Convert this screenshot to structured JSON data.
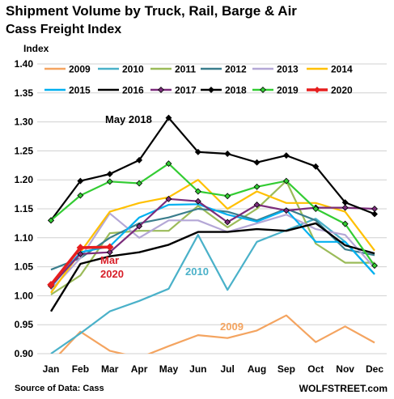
{
  "header": {
    "title": "Shipment Volume by Truck, Rail, Barge & Air",
    "subtitle": "Cass Freight Index",
    "source": "Source of Data: Cass",
    "brand": "WOLFSTREET.com"
  },
  "chart_data": {
    "type": "line",
    "ylabel": "Index",
    "xlabel": "",
    "categories": [
      "Jan",
      "Feb",
      "Mar",
      "Apr",
      "May",
      "Jun",
      "Jul",
      "Aug",
      "Sep",
      "Oct",
      "Nov",
      "Dec"
    ],
    "ylim": [
      0.9,
      1.4
    ],
    "yticks": [
      "0.90",
      "0.95",
      "1.00",
      "1.05",
      "1.10",
      "1.15",
      "1.20",
      "1.25",
      "1.30",
      "1.35",
      "1.40"
    ],
    "grid": "horizontal",
    "legend": "top",
    "series": [
      {
        "name": "2009",
        "color": "#f4a460",
        "marker": "none",
        "width": 2.2,
        "values": [
          0.884,
          0.938,
          0.905,
          0.893,
          0.913,
          0.932,
          0.927,
          0.94,
          0.966,
          0.92,
          0.947,
          0.919
        ]
      },
      {
        "name": "2010",
        "color": "#4ab1c9",
        "marker": "none",
        "width": 2.2,
        "values": [
          0.9,
          0.935,
          0.973,
          0.991,
          1.012,
          1.105,
          1.01,
          1.093,
          1.113,
          1.133,
          1.093,
          1.037
        ]
      },
      {
        "name": "2011",
        "color": "#9bbb59",
        "marker": "none",
        "width": 2.2,
        "values": [
          1.002,
          1.035,
          1.108,
          1.112,
          1.112,
          1.155,
          1.118,
          1.15,
          1.198,
          1.09,
          1.057,
          1.057
        ]
      },
      {
        "name": "2012",
        "color": "#3a7d8c",
        "marker": "none",
        "width": 2.2,
        "values": [
          1.045,
          1.065,
          1.1,
          1.125,
          1.135,
          1.15,
          1.145,
          1.13,
          1.15,
          1.13,
          1.08,
          1.07
        ]
      },
      {
        "name": "2013",
        "color": "#b4a7d6",
        "marker": "none",
        "width": 2.2,
        "values": [
          1.01,
          1.065,
          1.142,
          1.1,
          1.13,
          1.13,
          1.11,
          1.125,
          1.14,
          1.115,
          1.105,
          1.048
        ]
      },
      {
        "name": "2014",
        "color": "#ffc000",
        "marker": "none",
        "width": 2.2,
        "values": [
          1.005,
          1.075,
          1.145,
          1.16,
          1.17,
          1.2,
          1.15,
          1.18,
          1.16,
          1.16,
          1.145,
          1.078
        ]
      },
      {
        "name": "2015",
        "color": "#00b0f0",
        "marker": "none",
        "width": 2.2,
        "values": [
          1.015,
          1.075,
          1.085,
          1.135,
          1.157,
          1.158,
          1.14,
          1.128,
          1.148,
          1.093,
          1.093,
          1.037
        ]
      },
      {
        "name": "2016",
        "color": "#000000",
        "marker": "none",
        "width": 2.4,
        "values": [
          0.973,
          1.055,
          1.068,
          1.075,
          1.088,
          1.11,
          1.11,
          1.115,
          1.112,
          1.125,
          1.087,
          1.073
        ]
      },
      {
        "name": "2017",
        "color": "#7b2c7b",
        "marker": "diamond",
        "width": 2.2,
        "values": [
          1.017,
          1.072,
          1.075,
          1.12,
          1.167,
          1.163,
          1.127,
          1.157,
          1.147,
          1.152,
          1.152,
          1.15
        ]
      },
      {
        "name": "2018",
        "color": "#000000",
        "marker": "diamond",
        "width": 2.2,
        "values": [
          1.13,
          1.198,
          1.21,
          1.234,
          1.307,
          1.248,
          1.245,
          1.23,
          1.242,
          1.223,
          1.161,
          1.141
        ]
      },
      {
        "name": "2019",
        "color": "#33cc33",
        "marker": "diamond",
        "width": 2.2,
        "values": [
          1.13,
          1.173,
          1.197,
          1.194,
          1.228,
          1.18,
          1.172,
          1.188,
          1.198,
          1.15,
          1.124,
          1.052
        ]
      },
      {
        "name": "2020",
        "color": "#e61e1e",
        "marker": "diamond",
        "width": 3.6,
        "values": [
          1.019,
          1.083,
          1.084,
          null,
          null,
          null,
          null,
          null,
          null,
          null,
          null,
          null
        ]
      }
    ],
    "annotations": [
      {
        "text": "May 2018",
        "color": "#000000"
      },
      {
        "text": "Mar",
        "color": "#d71e28"
      },
      {
        "text": "2020",
        "color": "#d71e28"
      },
      {
        "text": "2010",
        "color": "#4ab1c9"
      },
      {
        "text": "2009",
        "color": "#f4a460"
      }
    ]
  }
}
